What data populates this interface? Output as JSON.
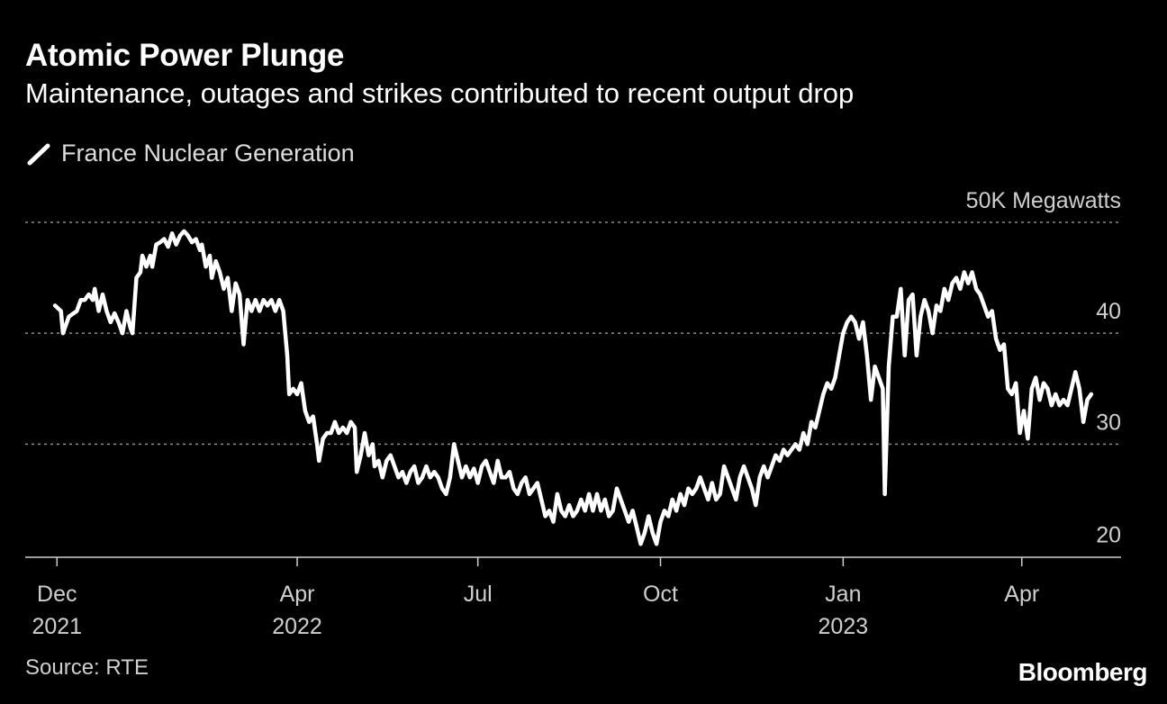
{
  "header": {
    "title": "Atomic Power Plunge",
    "subtitle": "Maintenance, outages and strikes contributed to recent output drop"
  },
  "legend": {
    "label": "France Nuclear Generation",
    "color": "#ffffff"
  },
  "footer": {
    "source": "Source: RTE",
    "brand": "Bloomberg"
  },
  "chart_data": {
    "type": "line",
    "title": "Atomic Power Plunge",
    "subtitle": "Maintenance, outages and strikes contributed to recent output drop",
    "ylabel": "Megawatts",
    "yunit_label": "50K Megawatts",
    "ylim": [
      20,
      50
    ],
    "yticks": [
      {
        "value": 50,
        "label": "50K Megawatts"
      },
      {
        "value": 40,
        "label": "40"
      },
      {
        "value": 30,
        "label": "30"
      },
      {
        "value": 20,
        "label": "20"
      }
    ],
    "xticks": [
      {
        "day": 0,
        "month": "Dec",
        "year": "2021"
      },
      {
        "day": 121,
        "month": "Apr",
        "year": "2022"
      },
      {
        "day": 212,
        "month": "Jul",
        "year": ""
      },
      {
        "day": 304,
        "month": "Oct",
        "year": ""
      },
      {
        "day": 396,
        "month": "Jan",
        "year": "2023"
      },
      {
        "day": 486,
        "month": "Apr",
        "year": ""
      }
    ],
    "x_range": [
      -16,
      536
    ],
    "series": [
      {
        "name": "France Nuclear Generation",
        "color": "#ffffff",
        "points": [
          [
            -1,
            42.5
          ],
          [
            2,
            42
          ],
          [
            3,
            40
          ],
          [
            6,
            41.5
          ],
          [
            10,
            42
          ],
          [
            12,
            43
          ],
          [
            14,
            43
          ],
          [
            16,
            43.5
          ],
          [
            18,
            43
          ],
          [
            19,
            44
          ],
          [
            21,
            42
          ],
          [
            23,
            43.5
          ],
          [
            25,
            42
          ],
          [
            27,
            41
          ],
          [
            29,
            41.8
          ],
          [
            31,
            41
          ],
          [
            33,
            40
          ],
          [
            35,
            42
          ],
          [
            37,
            40.5
          ],
          [
            38,
            40
          ],
          [
            40,
            45
          ],
          [
            42,
            45.5
          ],
          [
            43,
            47
          ],
          [
            45,
            46
          ],
          [
            47,
            47
          ],
          [
            48,
            46
          ],
          [
            50,
            48
          ],
          [
            52,
            48.2
          ],
          [
            54,
            48.5
          ],
          [
            56,
            47.8
          ],
          [
            58,
            49
          ],
          [
            60,
            48
          ],
          [
            62,
            48.8
          ],
          [
            64,
            49.2
          ],
          [
            66,
            48.8
          ],
          [
            68,
            48.2
          ],
          [
            70,
            48.5
          ],
          [
            72,
            47.5
          ],
          [
            73,
            48
          ],
          [
            75,
            46
          ],
          [
            77,
            47
          ],
          [
            78,
            45
          ],
          [
            80,
            46.5
          ],
          [
            82,
            45.5
          ],
          [
            84,
            44
          ],
          [
            86,
            45
          ],
          [
            88,
            42
          ],
          [
            90,
            44.5
          ],
          [
            92,
            43.5
          ],
          [
            94,
            39
          ],
          [
            96,
            43
          ],
          [
            98,
            42
          ],
          [
            100,
            43
          ],
          [
            102,
            42
          ],
          [
            104,
            43
          ],
          [
            106,
            42.5
          ],
          [
            108,
            43
          ],
          [
            110,
            42
          ],
          [
            112,
            43
          ],
          [
            114,
            42
          ],
          [
            116,
            38
          ],
          [
            117,
            34.5
          ],
          [
            119,
            35
          ],
          [
            121,
            34.5
          ],
          [
            123,
            35.5
          ],
          [
            125,
            33
          ],
          [
            127,
            32
          ],
          [
            129,
            32.5
          ],
          [
            131,
            30
          ],
          [
            132,
            28.5
          ],
          [
            134,
            30.5
          ],
          [
            136,
            31
          ],
          [
            138,
            31
          ],
          [
            140,
            32
          ],
          [
            142,
            31
          ],
          [
            144,
            31.5
          ],
          [
            146,
            31
          ],
          [
            148,
            32
          ],
          [
            150,
            31.5
          ],
          [
            151,
            27.5
          ],
          [
            153,
            29
          ],
          [
            155,
            31
          ],
          [
            157,
            29
          ],
          [
            159,
            30
          ],
          [
            160,
            28
          ],
          [
            162,
            28.5
          ],
          [
            164,
            27
          ],
          [
            166,
            28.5
          ],
          [
            168,
            29
          ],
          [
            170,
            28
          ],
          [
            172,
            27
          ],
          [
            174,
            27.5
          ],
          [
            176,
            26.5
          ],
          [
            178,
            27.5
          ],
          [
            180,
            28
          ],
          [
            182,
            26.5
          ],
          [
            184,
            27
          ],
          [
            186,
            28
          ],
          [
            188,
            27
          ],
          [
            190,
            27.5
          ],
          [
            192,
            27
          ],
          [
            194,
            26
          ],
          [
            196,
            25.5
          ],
          [
            198,
            27
          ],
          [
            200,
            30
          ],
          [
            202,
            28.5
          ],
          [
            204,
            27
          ],
          [
            206,
            28
          ],
          [
            208,
            27
          ],
          [
            210,
            27.8
          ],
          [
            212,
            26.5
          ],
          [
            214,
            28
          ],
          [
            216,
            28.5
          ],
          [
            218,
            27.5
          ],
          [
            220,
            26.5
          ],
          [
            222,
            28.5
          ],
          [
            224,
            27
          ],
          [
            226,
            27
          ],
          [
            228,
            27.5
          ],
          [
            230,
            26
          ],
          [
            232,
            25.5
          ],
          [
            234,
            26.5
          ],
          [
            236,
            27
          ],
          [
            238,
            25.5
          ],
          [
            240,
            26
          ],
          [
            242,
            26.5
          ],
          [
            244,
            25
          ],
          [
            246,
            23.5
          ],
          [
            248,
            24
          ],
          [
            250,
            23
          ],
          [
            252,
            25.5
          ],
          [
            254,
            24
          ],
          [
            256,
            23.5
          ],
          [
            258,
            24.5
          ],
          [
            260,
            23.5
          ],
          [
            262,
            24
          ],
          [
            264,
            25
          ],
          [
            266,
            24
          ],
          [
            268,
            25.5
          ],
          [
            270,
            24
          ],
          [
            272,
            25.5
          ],
          [
            274,
            24
          ],
          [
            276,
            25
          ],
          [
            278,
            23.5
          ],
          [
            280,
            24
          ],
          [
            282,
            26
          ],
          [
            284,
            25
          ],
          [
            286,
            24
          ],
          [
            288,
            23
          ],
          [
            290,
            24
          ],
          [
            292,
            22.5
          ],
          [
            294,
            21
          ],
          [
            296,
            22
          ],
          [
            298,
            23.5
          ],
          [
            300,
            22
          ],
          [
            302,
            21
          ],
          [
            304,
            23
          ],
          [
            306,
            24
          ],
          [
            308,
            23.5
          ],
          [
            310,
            25
          ],
          [
            312,
            24
          ],
          [
            314,
            25.5
          ],
          [
            316,
            24.5
          ],
          [
            318,
            26
          ],
          [
            320,
            25.5
          ],
          [
            322,
            26
          ],
          [
            324,
            27
          ],
          [
            326,
            26
          ],
          [
            328,
            25
          ],
          [
            330,
            26.5
          ],
          [
            332,
            25
          ],
          [
            334,
            25.5
          ],
          [
            336,
            28
          ],
          [
            338,
            27
          ],
          [
            340,
            26
          ],
          [
            342,
            25
          ],
          [
            344,
            27
          ],
          [
            346,
            28
          ],
          [
            348,
            27
          ],
          [
            350,
            26
          ],
          [
            352,
            24.5
          ],
          [
            354,
            27
          ],
          [
            356,
            28
          ],
          [
            358,
            27
          ],
          [
            360,
            28
          ],
          [
            362,
            29
          ],
          [
            364,
            28.5
          ],
          [
            366,
            29.5
          ],
          [
            368,
            29
          ],
          [
            370,
            29.5
          ],
          [
            372,
            30
          ],
          [
            374,
            29.5
          ],
          [
            376,
            31
          ],
          [
            378,
            30
          ],
          [
            380,
            32
          ],
          [
            382,
            31.5
          ],
          [
            384,
            33
          ],
          [
            386,
            34.5
          ],
          [
            388,
            35.5
          ],
          [
            390,
            35
          ],
          [
            392,
            36
          ],
          [
            394,
            38
          ],
          [
            396,
            40
          ],
          [
            398,
            41
          ],
          [
            400,
            41.5
          ],
          [
            402,
            41
          ],
          [
            404,
            39.5
          ],
          [
            406,
            41
          ],
          [
            408,
            38
          ],
          [
            410,
            34
          ],
          [
            412,
            37
          ],
          [
            414,
            36
          ],
          [
            416,
            35
          ],
          [
            417,
            25.5
          ],
          [
            419,
            37
          ],
          [
            421,
            41.5
          ],
          [
            423,
            41.5
          ],
          [
            425,
            44
          ],
          [
            427,
            38
          ],
          [
            429,
            43
          ],
          [
            431,
            43.5
          ],
          [
            433,
            38
          ],
          [
            435,
            41.5
          ],
          [
            437,
            43
          ],
          [
            439,
            42
          ],
          [
            441,
            40
          ],
          [
            443,
            42.5
          ],
          [
            445,
            42
          ],
          [
            447,
            44
          ],
          [
            449,
            43
          ],
          [
            451,
            44.5
          ],
          [
            453,
            45
          ],
          [
            455,
            44
          ],
          [
            457,
            45.5
          ],
          [
            459,
            44.5
          ],
          [
            461,
            45.5
          ],
          [
            463,
            44
          ],
          [
            465,
            43.5
          ],
          [
            467,
            42.5
          ],
          [
            469,
            41.5
          ],
          [
            471,
            42
          ],
          [
            473,
            39.5
          ],
          [
            475,
            38.5
          ],
          [
            477,
            39
          ],
          [
            479,
            35
          ],
          [
            481,
            34.5
          ],
          [
            483,
            35.5
          ],
          [
            485,
            31
          ],
          [
            487,
            33
          ],
          [
            489,
            30.5
          ],
          [
            491,
            35
          ],
          [
            493,
            36
          ],
          [
            495,
            34
          ],
          [
            497,
            35.5
          ],
          [
            499,
            35
          ],
          [
            501,
            33.5
          ],
          [
            503,
            34.5
          ],
          [
            505,
            33.5
          ],
          [
            507,
            34
          ],
          [
            509,
            33.5
          ],
          [
            511,
            35
          ],
          [
            513,
            36.5
          ],
          [
            515,
            35
          ],
          [
            517,
            32
          ],
          [
            519,
            34
          ],
          [
            521,
            34.5
          ]
        ]
      }
    ]
  }
}
